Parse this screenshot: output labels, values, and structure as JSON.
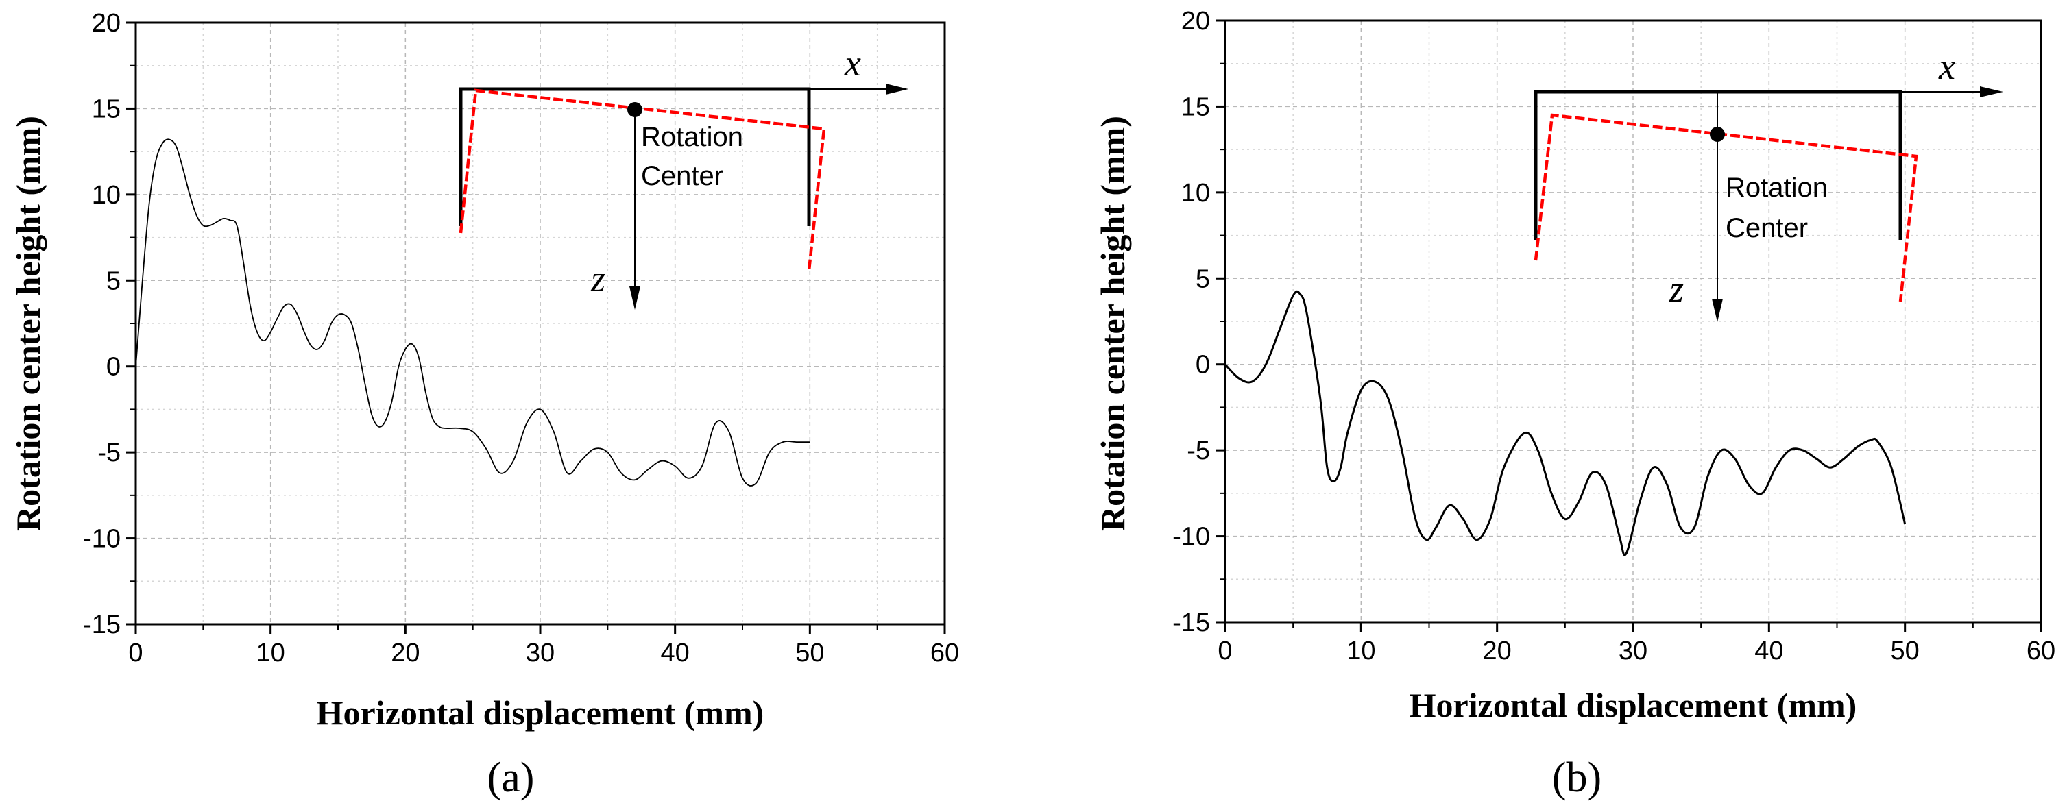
{
  "chart_data": [
    {
      "panel_label": "(a)",
      "type": "line",
      "xlabel": "Horizontal displacement (mm)",
      "ylabel": "Rotation center height (mm)",
      "xlim": [
        0,
        60
      ],
      "ylim": [
        -15,
        20
      ],
      "xticks": [
        0,
        10,
        20,
        30,
        40,
        50,
        60
      ],
      "yticks": [
        -15,
        -10,
        -5,
        0,
        5,
        10,
        15,
        20
      ],
      "grid": true,
      "series": [
        {
          "name": "rotation center height",
          "color": "#000000",
          "x": [
            0,
            0.5,
            1,
            1.5,
            2,
            2.5,
            3,
            3.5,
            4,
            4.5,
            5,
            5.5,
            6,
            6.5,
            7,
            7.5,
            8,
            8.5,
            9,
            9.5,
            10,
            10.5,
            11,
            11.5,
            12,
            12.5,
            13,
            13.5,
            14,
            14.5,
            15,
            15.5,
            16,
            16.5,
            17,
            17.5,
            18,
            18.5,
            19,
            19.5,
            20,
            20.5,
            21,
            21.5,
            22,
            22.5,
            23,
            24,
            25,
            26,
            27,
            28,
            29,
            30,
            31,
            32,
            33,
            34,
            35,
            36,
            37,
            38,
            39,
            40,
            41,
            42,
            43,
            44,
            45,
            46,
            47,
            48,
            49,
            50
          ],
          "y": [
            0,
            5,
            9.5,
            12,
            13,
            13.2,
            12.8,
            11.5,
            10,
            8.8,
            8.2,
            8.2,
            8.4,
            8.6,
            8.5,
            8.2,
            6,
            3.5,
            2,
            1.5,
            2,
            2.8,
            3.5,
            3.6,
            3,
            2,
            1.2,
            1,
            1.5,
            2.5,
            3,
            3,
            2.5,
            1,
            -1,
            -2.8,
            -3.5,
            -3.2,
            -2,
            0,
            1,
            1.3,
            0.5,
            -1.5,
            -3,
            -3.5,
            -3.6,
            -3.6,
            -3.8,
            -4.8,
            -6.2,
            -5.5,
            -3.3,
            -2.5,
            -3.8,
            -6.2,
            -5.5,
            -4.8,
            -5,
            -6.2,
            -6.6,
            -6,
            -5.5,
            -5.8,
            -6.5,
            -5.8,
            -3.3,
            -3.8,
            -6.5,
            -6.8,
            -5,
            -4.4,
            -4.4,
            -4.4
          ]
        }
      ],
      "inset": {
        "x_axis_label": "x",
        "z_axis_label": "z",
        "rotation_center_label_line1": "Rotation",
        "rotation_center_label_line2": "Center",
        "beam_original_color": "#000000",
        "beam_rotated_color": "#ff0000"
      }
    },
    {
      "panel_label": "(b)",
      "type": "line",
      "xlabel": "Horizontal displacement (mm)",
      "ylabel": "Rotation center height (mm)",
      "xlim": [
        0,
        60
      ],
      "ylim": [
        -15,
        20
      ],
      "xticks": [
        0,
        10,
        20,
        30,
        40,
        50,
        60
      ],
      "yticks": [
        -15,
        -10,
        -5,
        0,
        5,
        10,
        15,
        20
      ],
      "grid": true,
      "series": [
        {
          "name": "rotation center height",
          "color": "#000000",
          "x": [
            0,
            1,
            2,
            3,
            4,
            5,
            5.5,
            6,
            7,
            7.5,
            8,
            8.5,
            9,
            10,
            11,
            12,
            13,
            14,
            14.8,
            15.5,
            16.5,
            17.5,
            18.5,
            19.5,
            20.5,
            22,
            23,
            24,
            25,
            26,
            27,
            28,
            29,
            29.5,
            30.5,
            31.5,
            32.5,
            33.5,
            34.5,
            35.5,
            36.5,
            37.5,
            38.5,
            39.5,
            40.5,
            41.5,
            42.5,
            43.5,
            44.5,
            45.5,
            46.5,
            47.5,
            48,
            49,
            50
          ],
          "y": [
            0,
            -0.8,
            -1,
            0,
            2,
            4,
            4.1,
            3,
            -2,
            -6,
            -6.8,
            -6,
            -4,
            -1.5,
            -1,
            -2,
            -5,
            -9,
            -10.2,
            -9.5,
            -8.2,
            -9,
            -10.2,
            -9,
            -6,
            -4,
            -5,
            -7.5,
            -9,
            -8,
            -6.3,
            -7,
            -10,
            -11,
            -8,
            -6,
            -7,
            -9.5,
            -9.5,
            -6.5,
            -5,
            -5.5,
            -7,
            -7.5,
            -6,
            -5,
            -5,
            -5.5,
            -6,
            -5.5,
            -4.8,
            -4.4,
            -4.5,
            -6,
            -9.3
          ]
        }
      ],
      "inset": {
        "x_axis_label": "x",
        "z_axis_label": "z",
        "rotation_center_label_line1": "Rotation",
        "rotation_center_label_line2": "Center",
        "beam_original_color": "#000000",
        "beam_rotated_color": "#ff0000"
      }
    }
  ]
}
